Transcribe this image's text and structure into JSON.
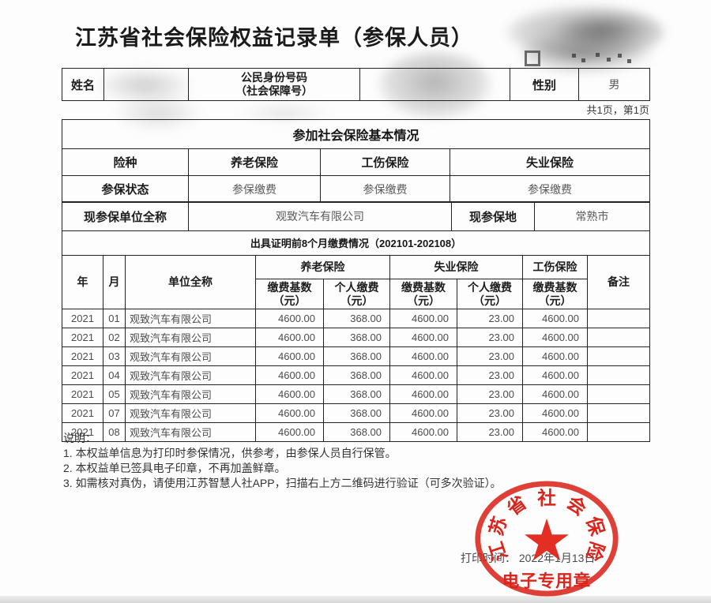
{
  "page": {
    "title": "江苏省社会保险权益记录单（参保人员）",
    "page_info": "共1页，第1页"
  },
  "identity": {
    "name_label": "姓名",
    "name_value": "",
    "id_label_line1": "公民身份号码",
    "id_label_line2": "（社会保障号）",
    "id_value": "",
    "gender_label": "性别",
    "gender_value": "男"
  },
  "basic_info": {
    "section_title": "参加社会保险基本情况",
    "insurance_type_label": "险种",
    "insurance_types": [
      "养老保险",
      "工伤保险",
      "失业保险"
    ],
    "status_label": "参保状态",
    "statuses": [
      "参保缴费",
      "参保缴费",
      "参保缴费"
    ],
    "employer_label": "现参保单位全称",
    "employer_value": "观致汽车有限公司",
    "location_label": "现参保地",
    "location_value": "常熟市"
  },
  "payment_table": {
    "section_title": "出具证明前8个月缴费情况（202101-202108）",
    "col_year": "年",
    "col_month": "月",
    "col_employer": "单位全称",
    "group_pension": "养老保险",
    "group_unemployment": "失业保险",
    "group_injury": "工伤保险",
    "col_base": "缴费基数（元）",
    "col_personal": "个人缴费（元）",
    "col_remark": "备注",
    "rows": [
      {
        "year": "2021",
        "month": "01",
        "employer": "观致汽车有限公司",
        "pension_base": "4600.00",
        "pension_personal": "368.00",
        "unemployment_base": "4600.00",
        "unemployment_personal": "23.00",
        "injury_base": "4600.00",
        "remark": ""
      },
      {
        "year": "2021",
        "month": "02",
        "employer": "观致汽车有限公司",
        "pension_base": "4600.00",
        "pension_personal": "368.00",
        "unemployment_base": "4600.00",
        "unemployment_personal": "23.00",
        "injury_base": "4600.00",
        "remark": ""
      },
      {
        "year": "2021",
        "month": "03",
        "employer": "观致汽车有限公司",
        "pension_base": "4600.00",
        "pension_personal": "368.00",
        "unemployment_base": "4600.00",
        "unemployment_personal": "23.00",
        "injury_base": "4600.00",
        "remark": ""
      },
      {
        "year": "2021",
        "month": "04",
        "employer": "观致汽车有限公司",
        "pension_base": "4600.00",
        "pension_personal": "368.00",
        "unemployment_base": "4600.00",
        "unemployment_personal": "23.00",
        "injury_base": "4600.00",
        "remark": ""
      },
      {
        "year": "2021",
        "month": "05",
        "employer": "观致汽车有限公司",
        "pension_base": "4600.00",
        "pension_personal": "368.00",
        "unemployment_base": "4600.00",
        "unemployment_personal": "23.00",
        "injury_base": "4600.00",
        "remark": ""
      },
      {
        "year": "2021",
        "month": "07",
        "employer": "观致汽车有限公司",
        "pension_base": "4600.00",
        "pension_personal": "368.00",
        "unemployment_base": "4600.00",
        "unemployment_personal": "23.00",
        "injury_base": "4600.00",
        "remark": ""
      },
      {
        "year": "2021",
        "month": "08",
        "employer": "观致汽车有限公司",
        "pension_base": "4600.00",
        "pension_personal": "368.00",
        "unemployment_base": "4600.00",
        "unemployment_personal": "23.00",
        "injury_base": "4600.00",
        "remark": ""
      }
    ]
  },
  "notes": {
    "heading": "说明：",
    "items": [
      "1. 本权益单信息为打印时参保情况，供参考，由参保人员自行保管。",
      "2. 本权益单已签具电子印章，不再加盖鲜章。",
      "3. 如需核对真伪，请使用江苏智慧人社APP，扫描右上方二维码进行验证（可多次验证）。"
    ]
  },
  "footer": {
    "print_time": "打印时间： 2022年1月13日"
  },
  "stamp": {
    "arc_text": "江苏省社会保险",
    "bottom_text": "电子专用章",
    "star_icon": "red-star",
    "color": "#d9251c"
  },
  "colors": {
    "stamp_red": "#d9251c",
    "border_black": "#222222",
    "value_grey": "#5a5a5a"
  }
}
